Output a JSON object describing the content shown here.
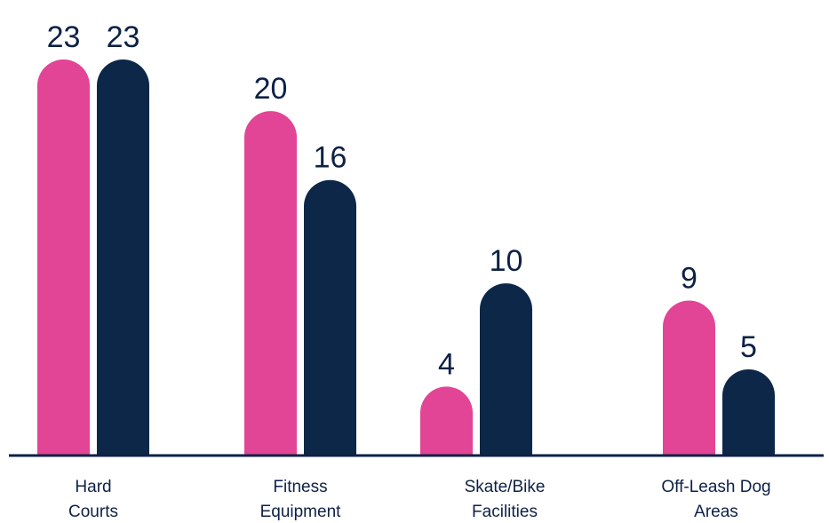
{
  "chart_data": {
    "type": "bar",
    "categories": [
      [
        "Hard",
        "Courts"
      ],
      [
        "Fitness",
        "Equipment"
      ],
      [
        "Skate/Bike",
        "Facilities"
      ],
      [
        "Off-Leash Dog",
        "Areas"
      ]
    ],
    "series": [
      {
        "values": [
          23,
          20,
          4,
          9
        ],
        "color": "#e24595"
      },
      {
        "values": [
          23,
          16,
          10,
          5
        ],
        "color": "#0d2749"
      }
    ],
    "title": "",
    "xlabel": "",
    "ylabel": "",
    "ylim": [
      0,
      23
    ],
    "grid": false,
    "legend": "none",
    "axis_color": "#0d2145"
  }
}
